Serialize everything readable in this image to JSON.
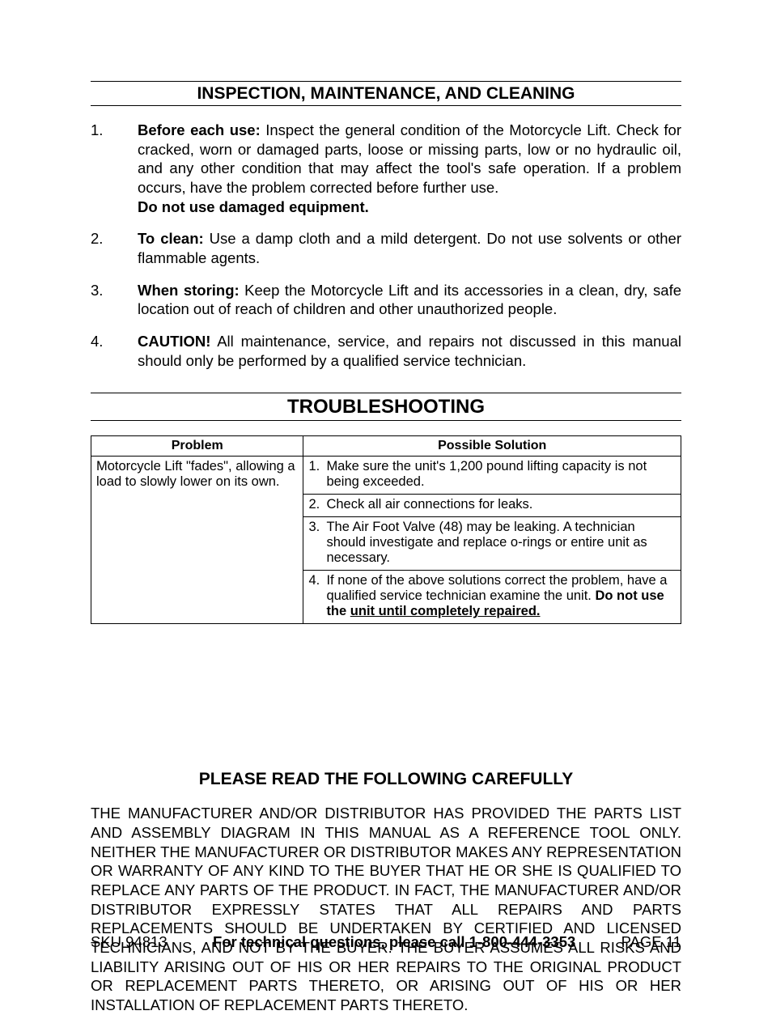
{
  "section1": {
    "heading": "INSPECTION, MAINTENANCE, AND CLEANING",
    "items": [
      {
        "num": "1.",
        "lead": "Before each use:",
        "text": "  Inspect the general condition of the Motorcycle Lift.  Check for cracked, worn or damaged parts, loose or missing parts, low or no hydraulic oil, and any other condition that may affect the tool's safe operation.  If a problem occurs, have the problem corrected before further use.",
        "trailing_bold": "Do not use damaged equipment."
      },
      {
        "num": "2.",
        "lead": "To clean:",
        "text": "  Use a damp cloth and a mild detergent.  Do not use solvents or other flammable agents."
      },
      {
        "num": "3.",
        "lead": "When storing:",
        "text": "  Keep the Motorcycle Lift and its accessories in a clean, dry, safe location out of reach of children and other unauthorized people."
      },
      {
        "num": "4.",
        "lead": "CAUTION!",
        "text": "  All maintenance, service, and repairs not discussed in this manual should only be performed by a qualified service technician."
      }
    ]
  },
  "section2": {
    "heading": "TROUBLESHOOTING",
    "table": {
      "col_problem": "Problem",
      "col_solution": "Possible Solution",
      "problem_text": "Motorcycle Lift \"fades\", allowing a load to slowly lower on its own.",
      "solutions": [
        {
          "n": "1.",
          "t": "Make sure the unit's 1,200 pound lifting capacity is not being exceeded."
        },
        {
          "n": "2.",
          "t": "Check all air connections for leaks."
        },
        {
          "n": "3.",
          "t": "The Air Foot Valve (48) may be leaking.  A technician should investigate and replace o-rings or entire unit as necessary."
        },
        {
          "n": "4.",
          "t_pre": "If none of the above solutions correct the problem, have a qualified service technician examine the unit.  ",
          "t_bold": "Do not use the ",
          "t_bold_under": "unit until completely repaired."
        }
      ]
    }
  },
  "section3": {
    "heading": "PLEASE READ THE FOLLOWING CAREFULLY",
    "disclaimer": "THE MANUFACTURER AND/OR DISTRIBUTOR HAS PROVIDED THE PARTS LIST AND ASSEMBLY DIAGRAM IN THIS MANUAL AS A REFERENCE TOOL ONLY.  NEITHER THE MANUFACTURER OR DISTRIBUTOR MAKES ANY REPRESENTATION OR WARRANTY OF ANY KIND TO THE BUYER THAT HE OR SHE IS QUALIFIED TO REPLACE ANY PARTS OF THE PRODUCT.  IN FACT, THE MANUFACTURER AND/OR DISTRIBUTOR EXPRESSLY STATES THAT ALL REPAIRS AND PARTS REPLACEMENTS SHOULD BE UNDERTAKEN BY CERTIFIED AND LICENSED TECHNICIANS, AND NOT BY THE BUYER.  THE BUYER ASSUMES ALL RISKS AND LIABILITY ARISING OUT OF HIS OR HER REPAIRS TO THE ORIGINAL PRODUCT OR REPLACEMENT PARTS THERETO, OR ARISING OUT OF HIS OR HER INSTALLATION OF REPLACEMENT PARTS THERETO."
  },
  "footer": {
    "sku": "SKU 94813",
    "center": "For technical questions, please call 1-800-444-3353",
    "page": "PAGE 11"
  }
}
